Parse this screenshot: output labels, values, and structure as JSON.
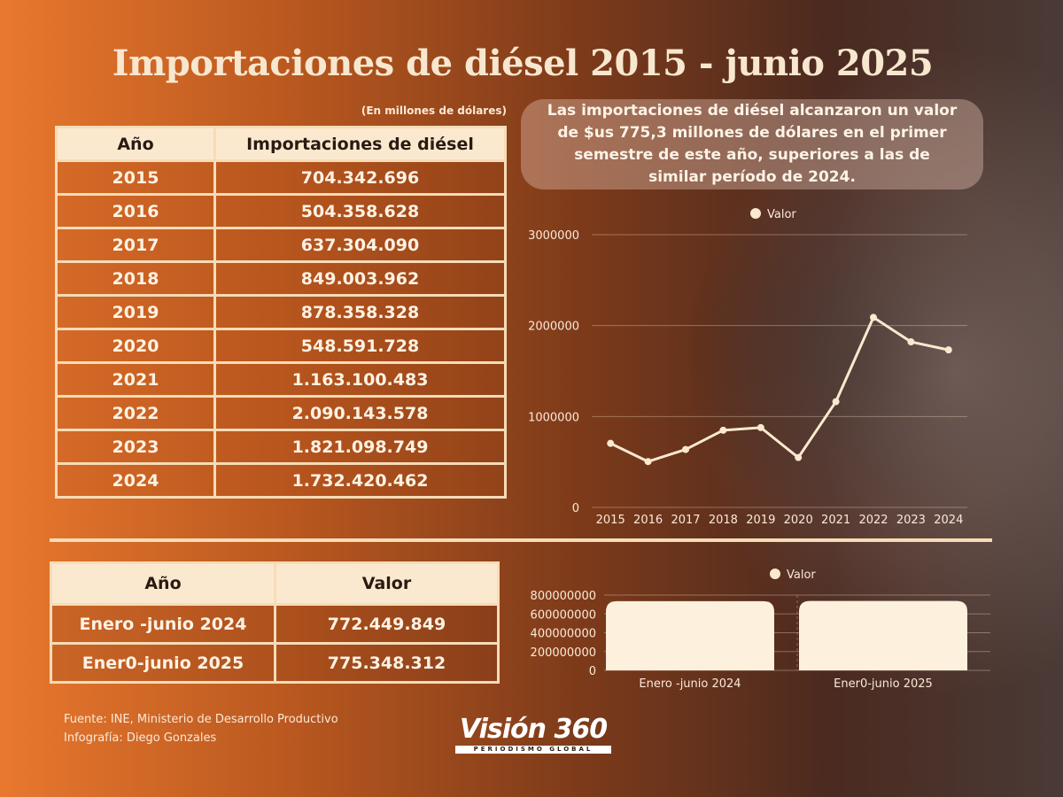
{
  "title": "Importaciones de diésel 2015 - junio 2025",
  "units_note": "(En millones de dólares)",
  "table_annual": {
    "headers": [
      "Año",
      "Importaciones de diésel"
    ],
    "rows": [
      [
        "2015",
        "704.342.696"
      ],
      [
        "2016",
        "504.358.628"
      ],
      [
        "2017",
        "637.304.090"
      ],
      [
        "2018",
        "849.003.962"
      ],
      [
        "2019",
        "878.358.328"
      ],
      [
        "2020",
        "548.591.728"
      ],
      [
        "2021",
        "1.163.100.483"
      ],
      [
        "2022",
        "2.090.143.578"
      ],
      [
        "2023",
        "1.821.098.749"
      ],
      [
        "2024",
        "1.732.420.462"
      ]
    ]
  },
  "callout": "Las importaciones de diésel alcanzaron un valor de $us 775,3 millones de dólares en el primer semestre de este año, superiores a las de similar período de 2024.",
  "table_semester": {
    "headers": [
      "Año",
      "Valor"
    ],
    "rows": [
      [
        "Enero -junio 2024",
        "772.449.849"
      ],
      [
        "Ener0-junio 2025",
        "775.348.312"
      ]
    ]
  },
  "source_line": "Fuente: INE, Ministerio de Desarrollo Productivo",
  "credit_line": "Infografía: Diego Gonzales",
  "logo": {
    "name": "Visión 360",
    "tagline": "PERIODISMO GLOBAL"
  },
  "colors": {
    "accent": "#f6dcb7",
    "line": "#fbe9cf",
    "text": "#fdf2e3"
  },
  "chart_data": [
    {
      "type": "line",
      "legend": "Valor",
      "categories": [
        "2015",
        "2016",
        "2017",
        "2018",
        "2019",
        "2020",
        "2021",
        "2022",
        "2023",
        "2024"
      ],
      "values": [
        704342.696,
        504358.628,
        637304.09,
        849003.962,
        878358.328,
        548591.728,
        1163100.483,
        2090143.578,
        1821098.749,
        1732420.462
      ],
      "yticks": [
        "0",
        "1000000",
        "2000000",
        "3000000"
      ],
      "ylim": [
        0,
        3000000
      ],
      "grid": true
    },
    {
      "type": "bar",
      "legend": "Valor",
      "categories": [
        "Enero -junio 2024",
        "Ener0-junio 2025"
      ],
      "values": [
        772449849,
        775348312
      ],
      "yticks": [
        "0",
        "200000000",
        "400000000",
        "600000000",
        "800000000"
      ],
      "ylim": [
        0,
        800000000
      ],
      "grid": true
    }
  ]
}
